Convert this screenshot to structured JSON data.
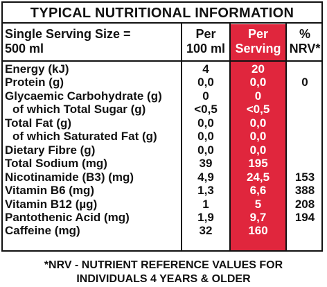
{
  "title": "TYPICAL NUTRITIONAL INFORMATION",
  "header": {
    "serving_line1": "Single Serving Size =",
    "serving_line2": "500 ml",
    "per100_line1": "Per",
    "per100_line2": "100 ml",
    "perserv_line1": "Per",
    "perserv_line2": "Serving",
    "nrv_line1": "%",
    "nrv_line2": "NRV*"
  },
  "rows": [
    {
      "name": "Energy (kJ)",
      "per100": "4",
      "serving": "20",
      "nrv": ""
    },
    {
      "name": "Protein (g)",
      "per100": "0,0",
      "serving": "0,0",
      "nrv": "0"
    },
    {
      "name": "Glycaemic Carbohydrate (g)",
      "per100": "0",
      "serving": "0",
      "nrv": ""
    },
    {
      "name": "of which Total Sugar (g)",
      "per100": "<0,5",
      "serving": "<0,5",
      "nrv": ""
    },
    {
      "name": "Total Fat (g)",
      "per100": "0,0",
      "serving": "0,0",
      "nrv": ""
    },
    {
      "name": "of which Saturated Fat (g)",
      "per100": "0,0",
      "serving": "0,0",
      "nrv": ""
    },
    {
      "name": "Dietary Fibre (g)",
      "per100": "0,0",
      "serving": "0,0",
      "nrv": ""
    },
    {
      "name": "Total Sodium (mg)",
      "per100": "39",
      "serving": "195",
      "nrv": ""
    },
    {
      "name": "Nicotinamide (B3) (mg)",
      "per100": "4,9",
      "serving": "24,5",
      "nrv": "153"
    },
    {
      "name": "Vitamin B6 (mg)",
      "per100": "1,3",
      "serving": "6,6",
      "nrv": "388"
    },
    {
      "name": "Vitamin B12 (µg)",
      "per100": "1",
      "serving": "5",
      "nrv": "208"
    },
    {
      "name": "Pantothenic Acid (mg)",
      "per100": "1,9",
      "serving": "9,7",
      "nrv": "194"
    },
    {
      "name": "Caffeine (mg)",
      "per100": "32",
      "serving": "160",
      "nrv": ""
    }
  ],
  "footnote_line1": "*NRV - NUTRIENT REFERENCE VALUES FOR",
  "footnote_line2": "INDIVIDUALS 4 YEARS & OLDER",
  "colors": {
    "highlight": "#e0263d",
    "text": "#111111"
  }
}
